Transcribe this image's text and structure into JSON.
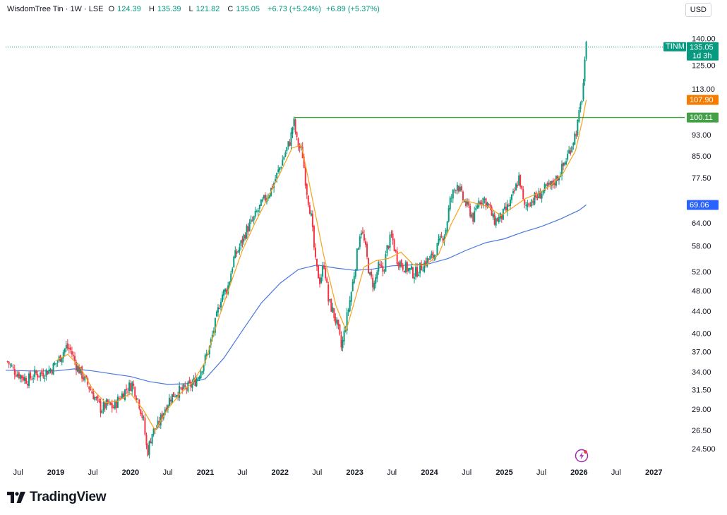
{
  "header": {
    "title": "WisdomTree Tin · 1W · LSE",
    "open_label": "O",
    "open": "124.39",
    "high_label": "H",
    "high": "135.39",
    "low_label": "L",
    "low": "121.82",
    "close_label": "C",
    "close": "135.05",
    "change": "+6.73 (+5.24%)",
    "change2": "+6.89 (+5.37%)"
  },
  "currency": "USD",
  "brand": "TradingView",
  "colors": {
    "up": "#089981",
    "down": "#f23645",
    "ma_fast": "#f7a21b",
    "ma_slow": "#4a77e0",
    "hline": "#43a047",
    "price_tag": "#089981",
    "ma_fast_tag": "#f57c00",
    "ma_slow_tag": "#2962ff"
  },
  "chart_data": {
    "type": "candlestick",
    "symbol": "TINM",
    "interval": "1W",
    "exchange": "LSE",
    "log_scale": true,
    "ylim": [
      23.5,
      142
    ],
    "xlim": [
      "2018-05-01",
      "2027-06-01"
    ],
    "y_ticks": [
      "140.00",
      "125.00",
      "113.00",
      "100.11",
      "93.00",
      "85.00",
      "77.50",
      "69.06",
      "64.00",
      "58.00",
      "52.00",
      "48.00",
      "44.00",
      "40.00",
      "37.00",
      "34.00",
      "31.50",
      "29.00",
      "26.50",
      "24.500"
    ],
    "x_ticks": [
      {
        "label": "Jul",
        "date": "2018-07-01"
      },
      {
        "label": "2019",
        "date": "2019-01-01",
        "year": true
      },
      {
        "label": "Jul",
        "date": "2019-07-01"
      },
      {
        "label": "2020",
        "date": "2020-01-01",
        "year": true
      },
      {
        "label": "Jul",
        "date": "2020-07-01"
      },
      {
        "label": "2021",
        "date": "2021-01-01",
        "year": true
      },
      {
        "label": "Jul",
        "date": "2021-07-01"
      },
      {
        "label": "2022",
        "date": "2022-01-01",
        "year": true
      },
      {
        "label": "Jul",
        "date": "2022-07-01"
      },
      {
        "label": "2023",
        "date": "2023-01-01",
        "year": true
      },
      {
        "label": "Jul",
        "date": "2023-07-01"
      },
      {
        "label": "2024",
        "date": "2024-01-01",
        "year": true
      },
      {
        "label": "Jul",
        "date": "2024-07-01"
      },
      {
        "label": "2025",
        "date": "2025-01-01",
        "year": true
      },
      {
        "label": "Jul",
        "date": "2025-07-01"
      },
      {
        "label": "2026",
        "date": "2026-01-01",
        "year": true
      },
      {
        "label": "Jul",
        "date": "2026-07-01"
      },
      {
        "label": "2027",
        "date": "2027-01-01",
        "year": true
      }
    ],
    "price_path": [
      [
        "2018-05-10",
        35.5
      ],
      [
        "2018-06-10",
        34.2
      ],
      [
        "2018-07-10",
        33.5
      ],
      [
        "2018-08-15",
        32.8
      ],
      [
        "2018-09-20",
        33.6
      ],
      [
        "2018-11-01",
        33.8
      ],
      [
        "2018-12-15",
        34.5
      ],
      [
        "2019-01-20",
        36.0
      ],
      [
        "2019-02-20",
        37.8
      ],
      [
        "2019-03-15",
        37.2
      ],
      [
        "2019-04-10",
        35.0
      ],
      [
        "2019-05-10",
        33.5
      ],
      [
        "2019-06-10",
        32.0
      ],
      [
        "2019-07-10",
        30.5
      ],
      [
        "2019-08-10",
        29.0
      ],
      [
        "2019-09-10",
        29.6
      ],
      [
        "2019-10-10",
        29.2
      ],
      [
        "2019-11-10",
        30.5
      ],
      [
        "2019-12-10",
        31.5
      ],
      [
        "2020-01-10",
        32.3
      ],
      [
        "2020-02-10",
        30.0
      ],
      [
        "2020-03-05",
        27.5
      ],
      [
        "2020-03-23",
        24.0
      ],
      [
        "2020-04-15",
        26.2
      ],
      [
        "2020-05-15",
        27.0
      ],
      [
        "2020-06-15",
        29.0
      ],
      [
        "2020-07-15",
        30.5
      ],
      [
        "2020-08-15",
        31.2
      ],
      [
        "2020-09-20",
        31.5
      ],
      [
        "2020-10-20",
        32.0
      ],
      [
        "2020-11-20",
        33.0
      ],
      [
        "2020-12-20",
        35.0
      ],
      [
        "2021-01-20",
        37.5
      ],
      [
        "2021-02-20",
        42.0
      ],
      [
        "2021-03-20",
        47.0
      ],
      [
        "2021-04-20",
        48.5
      ],
      [
        "2021-05-20",
        55.0
      ],
      [
        "2021-06-20",
        58.0
      ],
      [
        "2021-07-20",
        62.0
      ],
      [
        "2021-08-20",
        64.5
      ],
      [
        "2021-09-20",
        68.0
      ],
      [
        "2021-10-20",
        71.0
      ],
      [
        "2021-11-20",
        74.0
      ],
      [
        "2021-12-20",
        79.0
      ],
      [
        "2022-01-20",
        85.0
      ],
      [
        "2022-02-20",
        91.0
      ],
      [
        "2022-03-08",
        99.0
      ],
      [
        "2022-03-25",
        90.0
      ],
      [
        "2022-04-20",
        86.0
      ],
      [
        "2022-05-10",
        74.0
      ],
      [
        "2022-06-01",
        66.0
      ],
      [
        "2022-06-25",
        53.0
      ],
      [
        "2022-07-15",
        50.0
      ],
      [
        "2022-08-05",
        54.0
      ],
      [
        "2022-08-25",
        46.0
      ],
      [
        "2022-09-15",
        44.0
      ],
      [
        "2022-10-10",
        41.0
      ],
      [
        "2022-10-28",
        37.5
      ],
      [
        "2022-11-20",
        42.0
      ],
      [
        "2022-12-20",
        49.0
      ],
      [
        "2023-01-15",
        57.0
      ],
      [
        "2023-01-30",
        63.0
      ],
      [
        "2023-02-20",
        58.0
      ],
      [
        "2023-03-15",
        51.0
      ],
      [
        "2023-04-05",
        49.0
      ],
      [
        "2023-04-25",
        53.0
      ],
      [
        "2023-05-20",
        52.0
      ],
      [
        "2023-06-10",
        58.0
      ],
      [
        "2023-07-01",
        60.5
      ],
      [
        "2023-07-25",
        55.0
      ],
      [
        "2023-08-20",
        53.5
      ],
      [
        "2023-09-20",
        52.5
      ],
      [
        "2023-10-20",
        51.5
      ],
      [
        "2023-11-20",
        53.0
      ],
      [
        "2023-12-20",
        54.5
      ],
      [
        "2024-01-20",
        55.5
      ],
      [
        "2024-02-20",
        59.0
      ],
      [
        "2024-03-20",
        62.0
      ],
      [
        "2024-04-10",
        70.0
      ],
      [
        "2024-05-15",
        76.0
      ],
      [
        "2024-06-10",
        71.0
      ],
      [
        "2024-07-10",
        68.0
      ],
      [
        "2024-08-05",
        65.0
      ],
      [
        "2024-08-25",
        70.0
      ],
      [
        "2024-09-20",
        71.0
      ],
      [
        "2024-10-15",
        69.0
      ],
      [
        "2024-11-10",
        64.5
      ],
      [
        "2024-12-15",
        65.5
      ],
      [
        "2025-01-15",
        68.0
      ],
      [
        "2025-02-15",
        72.0
      ],
      [
        "2025-03-15",
        78.0
      ],
      [
        "2025-04-08",
        68.0
      ],
      [
        "2025-05-01",
        70.0
      ],
      [
        "2025-06-10",
        71.5
      ],
      [
        "2025-07-15",
        73.5
      ],
      [
        "2025-08-20",
        75.0
      ],
      [
        "2025-09-20",
        78.0
      ],
      [
        "2025-10-20",
        82.0
      ],
      [
        "2025-11-20",
        88.0
      ],
      [
        "2025-12-20",
        95.0
      ],
      [
        "2026-01-08",
        105.0
      ],
      [
        "2026-01-18",
        111.0
      ],
      [
        "2026-01-28",
        124.0
      ],
      [
        "2026-02-05",
        135.05
      ]
    ],
    "series": [
      {
        "name": "ma_fast",
        "points": [
          [
            "2019-01-01",
            35.6
          ],
          [
            "2019-03-01",
            36.6
          ],
          [
            "2019-05-01",
            34.6
          ],
          [
            "2019-07-01",
            31.5
          ],
          [
            "2019-09-01",
            29.8
          ],
          [
            "2019-11-01",
            30.0
          ],
          [
            "2020-01-01",
            31.0
          ],
          [
            "2020-03-01",
            29.0
          ],
          [
            "2020-05-01",
            26.5
          ],
          [
            "2020-07-01",
            29.0
          ],
          [
            "2020-09-01",
            31.0
          ],
          [
            "2020-11-01",
            32.5
          ],
          [
            "2021-01-01",
            35.5
          ],
          [
            "2021-03-01",
            42.0
          ],
          [
            "2021-05-01",
            49.0
          ],
          [
            "2021-07-01",
            57.0
          ],
          [
            "2021-09-01",
            64.0
          ],
          [
            "2021-11-01",
            71.0
          ],
          [
            "2022-01-01",
            79.0
          ],
          [
            "2022-03-01",
            88.0
          ],
          [
            "2022-04-15",
            89.0
          ],
          [
            "2022-06-01",
            73.0
          ],
          [
            "2022-08-01",
            56.0
          ],
          [
            "2022-10-01",
            45.0
          ],
          [
            "2022-11-20",
            40.5
          ],
          [
            "2023-01-01",
            46.0
          ],
          [
            "2023-02-15",
            53.0
          ],
          [
            "2023-04-15",
            54.5
          ],
          [
            "2023-06-15",
            55.0
          ],
          [
            "2023-08-15",
            56.5
          ],
          [
            "2023-10-15",
            53.5
          ],
          [
            "2023-12-15",
            53.5
          ],
          [
            "2024-02-15",
            56.0
          ],
          [
            "2024-04-15",
            63.5
          ],
          [
            "2024-06-15",
            70.5
          ],
          [
            "2024-08-15",
            69.5
          ],
          [
            "2024-10-15",
            68.5
          ],
          [
            "2024-12-15",
            66.0
          ],
          [
            "2025-02-15",
            68.5
          ],
          [
            "2025-04-15",
            71.0
          ],
          [
            "2025-06-15",
            72.5
          ],
          [
            "2025-08-15",
            75.0
          ],
          [
            "2025-10-15",
            79.0
          ],
          [
            "2025-12-15",
            87.0
          ],
          [
            "2026-01-20",
            100.0
          ],
          [
            "2026-02-05",
            107.9
          ]
        ]
      },
      {
        "name": "ma_slow",
        "points": [
          [
            "2018-05-01",
            34.2
          ],
          [
            "2018-09-01",
            34.1
          ],
          [
            "2019-01-01",
            34.1
          ],
          [
            "2019-04-01",
            34.4
          ],
          [
            "2019-07-01",
            34.1
          ],
          [
            "2019-10-01",
            33.7
          ],
          [
            "2020-01-01",
            33.3
          ],
          [
            "2020-04-01",
            32.6
          ],
          [
            "2020-07-01",
            32.2
          ],
          [
            "2020-10-01",
            32.3
          ],
          [
            "2021-01-01",
            33.0
          ],
          [
            "2021-04-01",
            36.0
          ],
          [
            "2021-07-01",
            40.5
          ],
          [
            "2021-10-01",
            45.5
          ],
          [
            "2022-01-01",
            49.5
          ],
          [
            "2022-04-01",
            52.5
          ],
          [
            "2022-07-01",
            53.5
          ],
          [
            "2022-10-01",
            52.8
          ],
          [
            "2023-01-01",
            52.3
          ],
          [
            "2023-04-01",
            52.6
          ],
          [
            "2023-07-01",
            53.3
          ],
          [
            "2023-10-01",
            53.5
          ],
          [
            "2024-01-01",
            53.8
          ],
          [
            "2024-04-01",
            55.0
          ],
          [
            "2024-07-01",
            57.0
          ],
          [
            "2024-10-01",
            58.8
          ],
          [
            "2025-01-01",
            59.8
          ],
          [
            "2025-04-01",
            61.5
          ],
          [
            "2025-07-01",
            63.0
          ],
          [
            "2025-10-01",
            65.0
          ],
          [
            "2026-01-01",
            67.5
          ],
          [
            "2026-02-05",
            69.06
          ]
        ]
      }
    ],
    "horizontal_lines": [
      {
        "value": 100.11,
        "from": "2022-03-08"
      }
    ],
    "price_tags": {
      "symbol": "TINM",
      "last": "135.05",
      "countdown": "1d 3h",
      "ma_fast": "107.90",
      "hline": "100.11",
      "ma_slow": "69.06"
    }
  }
}
